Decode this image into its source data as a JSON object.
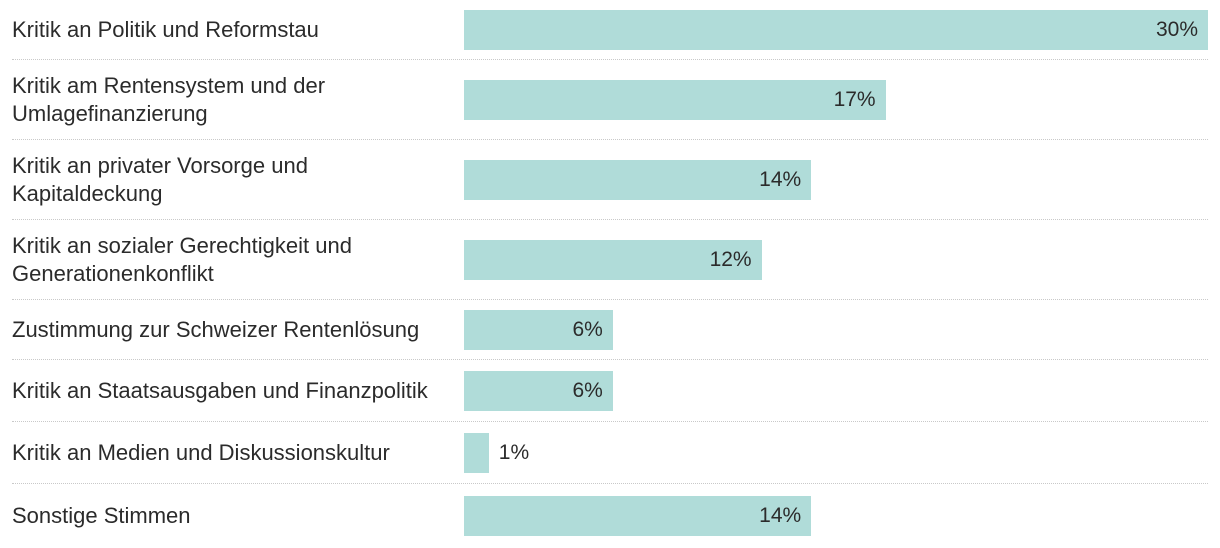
{
  "chart_data": {
    "type": "bar",
    "orientation": "horizontal",
    "categories": [
      "Kritik an Politik und Reformstau",
      "Kritik am Rentensystem und der Umlagefinanzierung",
      "Kritik an privater Vorsorge und Kapitaldeckung",
      "Kritik an sozialer Gerechtigkeit und Generationenkonflikt",
      "Zustimmung zur Schweizer Rentenlösung",
      "Kritik an Staatsausgaben und Finanzpolitik",
      "Kritik an Medien und Diskussionskultur",
      "Sonstige Stimmen"
    ],
    "category_lines": [
      [
        "Kritik an Politik und Reformstau"
      ],
      [
        "Kritik am Rentensystem und der",
        "Umlagefinanzierung"
      ],
      [
        "Kritik an privater Vorsorge und",
        "Kapitaldeckung"
      ],
      [
        "Kritik an sozialer Gerechtigkeit und",
        "Generationenkonflikt"
      ],
      [
        "Zustimmung zur Schweizer Rentenlösung"
      ],
      [
        "Kritik an Staatsausgaben und Finanzpolitik"
      ],
      [
        "Kritik an Medien und Diskussionskultur"
      ],
      [
        "Sonstige Stimmen"
      ]
    ],
    "values": [
      30,
      17,
      14,
      12,
      6,
      6,
      1,
      14
    ],
    "value_labels": [
      "30%",
      "17%",
      "14%",
      "12%",
      "6%",
      "6%",
      "1%",
      "14%"
    ],
    "unit": "%",
    "xlim": [
      0,
      30
    ],
    "title": "",
    "xlabel": "",
    "ylabel": "",
    "grid": false,
    "bar_color": "#b0dcd9",
    "separator_color": "#c9c9c9",
    "text_color": "#2b2b2b"
  }
}
